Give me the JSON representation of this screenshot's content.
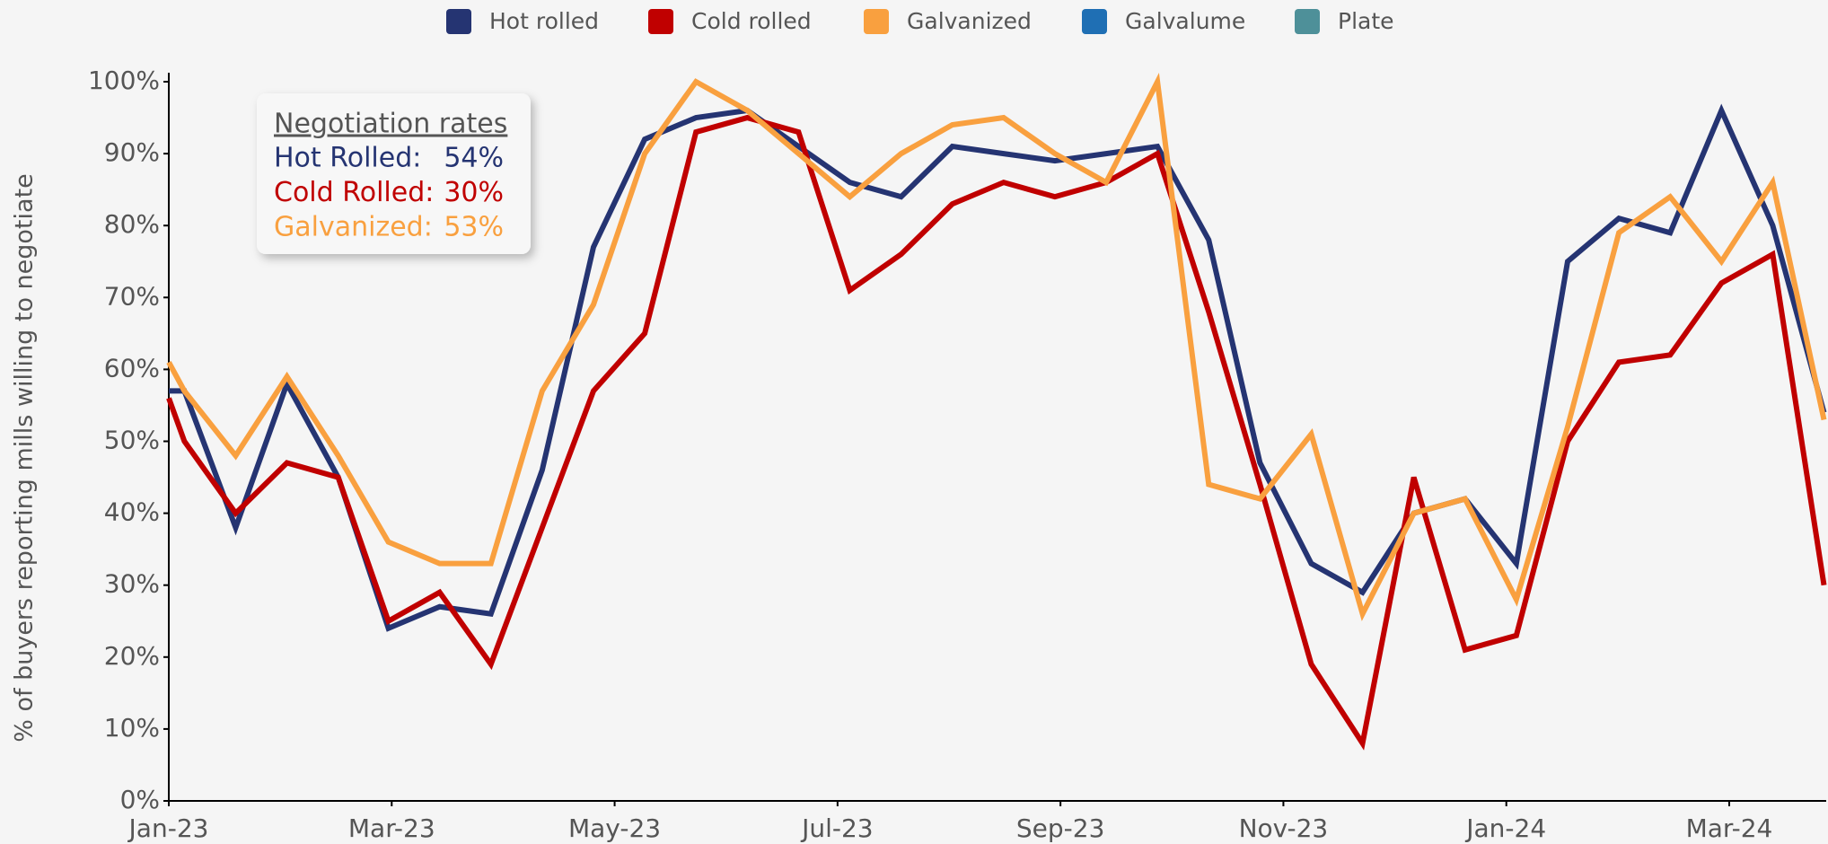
{
  "chart_data": {
    "type": "line",
    "y_label": "% of buyers reporting mills willing to negotiate",
    "x": [
      0,
      0.14,
      0.6,
      1.06,
      1.52,
      1.97,
      2.43,
      2.89,
      3.35,
      3.81,
      4.27,
      4.73,
      5.19,
      5.65,
      6.11,
      6.57,
      7.03,
      7.49,
      7.95,
      8.41,
      8.87,
      9.33,
      9.79,
      10.25,
      10.71,
      11.17,
      11.63,
      12.09,
      12.55,
      13.01,
      13.47,
      13.93,
      14.39,
      14.85
    ],
    "xlim": [
      0,
      14.87
    ],
    "xticks": [
      {
        "value": 0,
        "label": "Jan-23"
      },
      {
        "value": 2,
        "label": "Mar-23"
      },
      {
        "value": 4,
        "label": "May-23"
      },
      {
        "value": 6,
        "label": "Jul-23"
      },
      {
        "value": 8,
        "label": "Sep-23"
      },
      {
        "value": 10,
        "label": "Nov-23"
      },
      {
        "value": 12,
        "label": "Jan-24"
      },
      {
        "value": 14,
        "label": "Mar-24"
      }
    ],
    "ylim": [
      0,
      100
    ],
    "yticks": [
      {
        "value": 0,
        "label": "0%"
      },
      {
        "value": 10,
        "label": "10%"
      },
      {
        "value": 20,
        "label": "20%"
      },
      {
        "value": 30,
        "label": "30%"
      },
      {
        "value": 40,
        "label": "40%"
      },
      {
        "value": 50,
        "label": "50%"
      },
      {
        "value": 60,
        "label": "60%"
      },
      {
        "value": 70,
        "label": "70%"
      },
      {
        "value": 80,
        "label": "80%"
      },
      {
        "value": 90,
        "label": "90%"
      },
      {
        "value": 100,
        "label": "100%"
      }
    ],
    "grid": false,
    "legend": "top",
    "series": [
      {
        "name": "Hot rolled",
        "color": "#253472",
        "values": [
          57,
          57,
          38,
          58,
          45,
          24,
          27,
          26,
          46,
          77,
          92,
          95,
          96,
          91,
          86,
          84,
          91,
          90,
          89,
          90,
          91,
          78,
          47,
          33,
          29,
          40,
          42,
          33,
          75,
          81,
          79,
          96,
          80,
          54
        ]
      },
      {
        "name": "Cold rolled",
        "color": "#c00000",
        "values": [
          56,
          50,
          40,
          47,
          45,
          25,
          29,
          19,
          38,
          57,
          65,
          93,
          95,
          93,
          71,
          76,
          83,
          86,
          84,
          86,
          90,
          68,
          44,
          19,
          8,
          45,
          21,
          23,
          50,
          61,
          62,
          72,
          76,
          30
        ]
      },
      {
        "name": "Galvanized",
        "color": "#f9a03f",
        "values": [
          61,
          57,
          48,
          59,
          48,
          36,
          33,
          33,
          57,
          69,
          90,
          100,
          96,
          90,
          84,
          90,
          94,
          95,
          90,
          86,
          100,
          44,
          42,
          51,
          26,
          40,
          42,
          28,
          52,
          79,
          84,
          75,
          86,
          53
        ]
      },
      {
        "name": "Galvalume",
        "color": "#1f6fb4",
        "values": [
          null,
          null,
          null,
          null,
          null,
          null,
          null,
          null,
          null,
          null,
          null,
          null,
          null,
          null,
          null,
          null,
          null,
          null,
          null,
          null,
          null,
          null,
          null,
          null,
          null,
          null,
          null,
          null,
          null,
          null,
          null,
          null,
          null,
          null
        ]
      },
      {
        "name": "Plate",
        "color": "#4e9099",
        "values": [
          null,
          null,
          null,
          null,
          null,
          null,
          null,
          null,
          null,
          null,
          null,
          null,
          null,
          null,
          null,
          null,
          null,
          null,
          null,
          null,
          null,
          null,
          null,
          null,
          null,
          null,
          null,
          null,
          null,
          null,
          null,
          null,
          null,
          null
        ]
      }
    ],
    "annotation": {
      "title": "Negotiation rates",
      "rows": [
        {
          "label": "Hot Rolled:",
          "value": "54%"
        },
        {
          "label": "Cold Rolled:",
          "value": "30%"
        },
        {
          "label": "Galvanized:",
          "value": "53%"
        }
      ]
    }
  }
}
